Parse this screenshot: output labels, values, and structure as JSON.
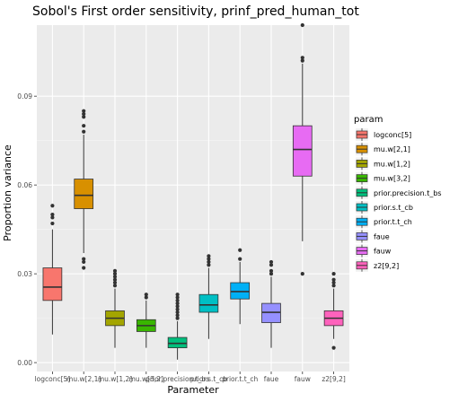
{
  "chart_data": {
    "type": "boxplot",
    "title": "Sobol's First order sensitivity,  prinf_pred_human_tot",
    "xlabel": "Parameter",
    "ylabel": "Proportion variance",
    "ylim": [
      -0.003,
      0.114
    ],
    "yticks": [
      0.0,
      0.03,
      0.06,
      0.09
    ],
    "ytick_labels": [
      "0.00",
      "0.03",
      "0.06",
      "0.09"
    ],
    "grid": true,
    "legend": {
      "title": "param",
      "position": "right"
    },
    "categories": [
      "logconc[5]",
      "mu.w[2,1]",
      "mu.w[1,2]",
      "mu.w[3,2]",
      "prior.precision.t_bs",
      "prior.s.t_cb",
      "prior.t.t_ch",
      "faue",
      "fauw",
      "z2[9,2]"
    ],
    "xtick_labels": [
      "logconc[5]",
      "mu.w[2,1]",
      "mu.w[1,2]",
      "mu.w[3,2]",
      "prior.precision.t_bs",
      "prior.s.t_cb",
      "prior.t.t_ch",
      "faue",
      "fauw",
      "z2[9,2]"
    ],
    "colors": [
      "#F8766D",
      "#D89000",
      "#A3A500",
      "#39B600",
      "#00BF7D",
      "#00BFC4",
      "#00B0F6",
      "#9590FF",
      "#E76BF3",
      "#FF62BC"
    ],
    "boxes": [
      {
        "name": "logconc[5]",
        "q1": 0.021,
        "median": 0.0255,
        "q3": 0.032,
        "whisker_low": 0.0095,
        "whisker_high": 0.045,
        "outliers": [
          0.047,
          0.049,
          0.05,
          0.053
        ]
      },
      {
        "name": "mu.w[2,1]",
        "q1": 0.052,
        "median": 0.0565,
        "q3": 0.062,
        "whisker_low": 0.037,
        "whisker_high": 0.077,
        "outliers": [
          0.032,
          0.034,
          0.035,
          0.078,
          0.08,
          0.083,
          0.084,
          0.085
        ]
      },
      {
        "name": "mu.w[1,2]",
        "q1": 0.0125,
        "median": 0.015,
        "q3": 0.0175,
        "whisker_low": 0.005,
        "whisker_high": 0.025,
        "outliers": [
          0.026,
          0.027,
          0.028,
          0.029,
          0.03,
          0.031
        ]
      },
      {
        "name": "mu.w[3,2]",
        "q1": 0.0105,
        "median": 0.0125,
        "q3": 0.0145,
        "whisker_low": 0.005,
        "whisker_high": 0.021,
        "outliers": [
          0.022,
          0.023
        ]
      },
      {
        "name": "prior.precision.t_bs",
        "q1": 0.005,
        "median": 0.0065,
        "q3": 0.0085,
        "whisker_low": 0.001,
        "whisker_high": 0.014,
        "outliers": [
          0.015,
          0.016,
          0.017,
          0.018,
          0.019,
          0.02,
          0.021,
          0.022,
          0.023
        ]
      },
      {
        "name": "prior.s.t_cb",
        "q1": 0.017,
        "median": 0.0195,
        "q3": 0.023,
        "whisker_low": 0.008,
        "whisker_high": 0.032,
        "outliers": [
          0.033,
          0.034,
          0.035,
          0.036
        ]
      },
      {
        "name": "prior.t.t_ch",
        "q1": 0.0215,
        "median": 0.024,
        "q3": 0.027,
        "whisker_low": 0.013,
        "whisker_high": 0.034,
        "outliers": [
          0.035,
          0.038
        ]
      },
      {
        "name": "faue",
        "q1": 0.0135,
        "median": 0.017,
        "q3": 0.02,
        "whisker_low": 0.005,
        "whisker_high": 0.029,
        "outliers": [
          0.03,
          0.031,
          0.033,
          0.034
        ]
      },
      {
        "name": "fauw",
        "q1": 0.063,
        "median": 0.072,
        "q3": 0.08,
        "whisker_low": 0.041,
        "whisker_high": 0.101,
        "outliers": [
          0.03,
          0.102,
          0.103,
          0.114
        ]
      },
      {
        "name": "z2[9,2]",
        "q1": 0.0125,
        "median": 0.015,
        "q3": 0.0175,
        "whisker_low": 0.008,
        "whisker_high": 0.025,
        "outliers": [
          0.005,
          0.026,
          0.027,
          0.028,
          0.03
        ]
      }
    ]
  }
}
